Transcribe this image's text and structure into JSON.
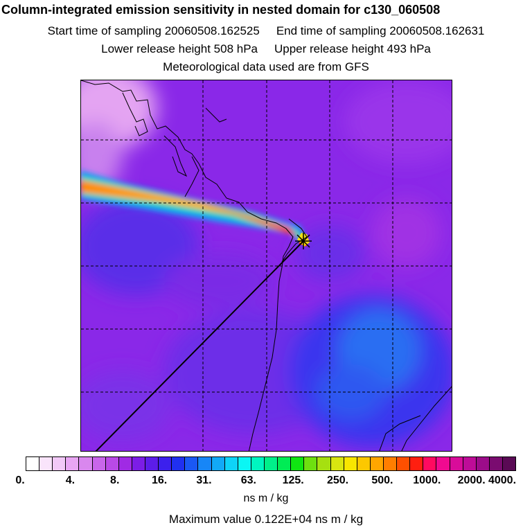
{
  "header": {
    "title": "Column-integrated emission sensitivity in nested domain for c130_060508",
    "start_label": "Start time of sampling 20060508.162525",
    "end_label": "End time of sampling 20060508.162631",
    "lower_label": "Lower release height  508 hPa",
    "upper_label": "Upper release height  493 hPa",
    "met_label": "Meteorological data used are from GFS"
  },
  "colorbar": {
    "segments": [
      "#ffffff",
      "#f9e4fb",
      "#f2c9f7",
      "#e8a6f3",
      "#d987ee",
      "#c966ea",
      "#b94ae6",
      "#a02ae4",
      "#7c1de6",
      "#5c1de9",
      "#3c20ed",
      "#2030f0",
      "#1a58f4",
      "#1786f7",
      "#12a9f7",
      "#0ed3f8",
      "#0af6f4",
      "#00f5c0",
      "#00f08a",
      "#00ec55",
      "#10e612",
      "#6ee010",
      "#a6e010",
      "#d8e610",
      "#f8e600",
      "#fcc800",
      "#ffa600",
      "#ff7e00",
      "#ff5000",
      "#ff1f10",
      "#ff0a60",
      "#f00a90",
      "#d80c9a",
      "#be0c98",
      "#9c0c8a",
      "#7a0c70",
      "#5a0a55"
    ],
    "ticks": [
      "0.",
      "4.",
      "8.",
      "16.",
      "31.",
      "63.",
      "125.",
      "250.",
      "500.",
      "1000.",
      "2000.",
      "4000."
    ],
    "units": "ns m / kg"
  },
  "footer": {
    "max_value": "Maximum value  0.122E+04 ns m / kg"
  }
}
